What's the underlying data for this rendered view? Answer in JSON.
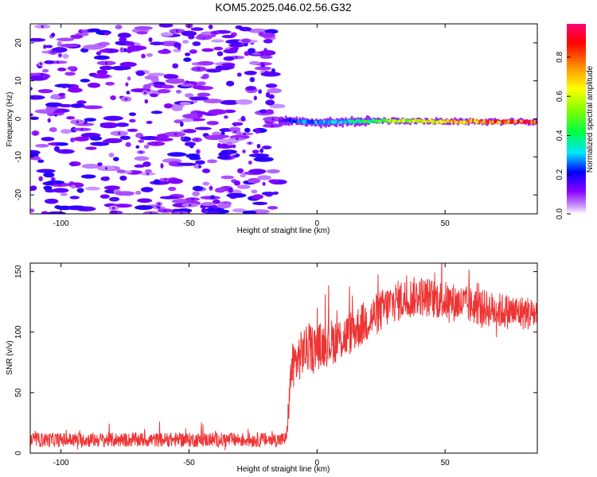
{
  "title": "KOM5.2025.046.02.56.G32",
  "chart_data": [
    {
      "type": "heatmap",
      "xlabel": "Height of straight line (km)",
      "ylabel": "Frequency (Hz)",
      "xlim": [
        -112,
        86
      ],
      "ylim": [
        -25,
        25
      ],
      "xticks": [
        -100,
        -50,
        0,
        50
      ],
      "xtick_labels": [
        "-100",
        "-50",
        "0",
        "50"
      ],
      "yticks": [
        -20,
        -10,
        0,
        10,
        20
      ],
      "ytick_labels": [
        "-20",
        "-10",
        "0",
        "10",
        "20"
      ],
      "colorbar": {
        "label": "Normalized spectral amplitude",
        "range": [
          0,
          0.97
        ],
        "ticks": [
          0,
          0.2,
          0.4,
          0.6,
          0.8
        ],
        "tick_labels": [
          "0.0",
          "0.2",
          "0.4",
          "0.6",
          "0.8"
        ]
      },
      "features": {
        "noise_region_x": [
          -112,
          -15
        ],
        "noise_amplitude": 0.1,
        "signal_band": [
          {
            "x": -15,
            "freq": -0.5,
            "amp": 0.15
          },
          {
            "x": -10,
            "freq": -0.5,
            "amp": 0.25
          },
          {
            "x": -5,
            "freq": -0.7,
            "amp": 0.3
          },
          {
            "x": 0,
            "freq": -1.0,
            "amp": 0.3
          },
          {
            "x": 10,
            "freq": -0.8,
            "amp": 0.35
          },
          {
            "x": 20,
            "freq": -0.5,
            "amp": 0.45
          },
          {
            "x": 30,
            "freq": -0.5,
            "amp": 0.6
          },
          {
            "x": 40,
            "freq": -0.6,
            "amp": 0.7
          },
          {
            "x": 50,
            "freq": -0.7,
            "amp": 0.75
          },
          {
            "x": 60,
            "freq": -0.7,
            "amp": 0.8
          },
          {
            "x": 70,
            "freq": -0.8,
            "amp": 0.85
          },
          {
            "x": 86,
            "freq": -0.8,
            "amp": 0.95
          }
        ]
      }
    },
    {
      "type": "line",
      "xlabel": "Height of straight line (km)",
      "ylabel": "SNR (v/v)",
      "xlim": [
        -112,
        86
      ],
      "ylim": [
        0,
        157
      ],
      "xticks": [
        -100,
        -50,
        0,
        50
      ],
      "xtick_labels": [
        "-100",
        "-50",
        "0",
        "50"
      ],
      "yticks": [
        0,
        50,
        100,
        150
      ],
      "ytick_labels": [
        "0",
        "50",
        "100",
        "150"
      ],
      "series_color": "#ee3333",
      "trend": {
        "x": [
          -112,
          -80,
          -40,
          -14,
          -12,
          -10,
          -5,
          0,
          10,
          20,
          30,
          40,
          50,
          60,
          70,
          86
        ],
        "y": [
          11,
          11,
          11,
          11,
          12,
          70,
          85,
          88,
          95,
          110,
          125,
          130,
          126,
          122,
          118,
          115
        ]
      },
      "noise": {
        "x": [
          -112,
          -12,
          -10,
          20,
          86
        ],
        "amplitude": [
          6,
          6,
          20,
          18,
          14
        ]
      }
    }
  ]
}
